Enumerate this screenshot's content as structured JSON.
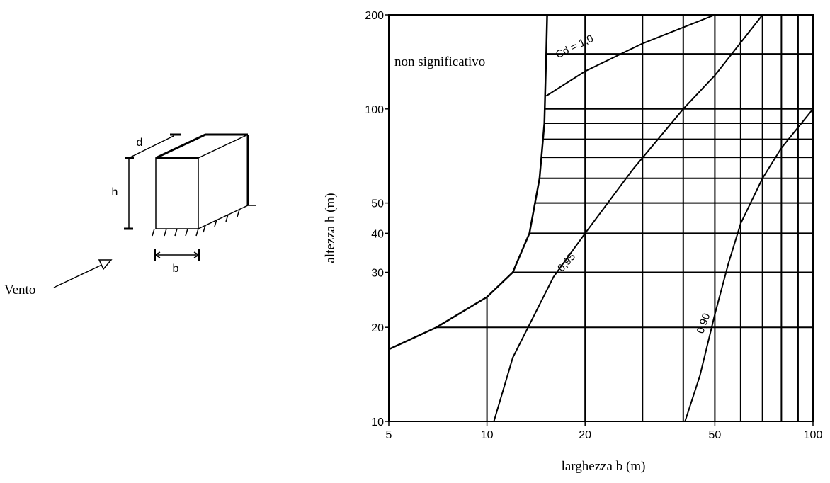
{
  "sketch": {
    "wind_label": "Vento",
    "dim_d": "d",
    "dim_h": "h",
    "dim_b": "b"
  },
  "chart_data": {
    "type": "line",
    "xlabel": "larghezza b (m)",
    "ylabel": "altezza h (m)",
    "xscale": "log",
    "yscale": "log",
    "xlim": [
      5,
      100
    ],
    "ylim": [
      10,
      200
    ],
    "xticks": [
      5,
      10,
      20,
      50,
      100
    ],
    "yticks": [
      10,
      20,
      30,
      40,
      50,
      100,
      200
    ],
    "grid": true,
    "annotations": [
      {
        "text": "non significativo"
      }
    ],
    "series": [
      {
        "name": "Cd = 1,0",
        "x": [
          15.2,
          20,
          30,
          50,
          73
        ],
        "y": [
          110,
          132,
          162,
          200,
          200
        ]
      },
      {
        "name": "0,95",
        "x": [
          10.5,
          12,
          14,
          16,
          20,
          28,
          40,
          50,
          70
        ],
        "y": [
          10,
          16,
          22,
          29,
          40,
          64,
          100,
          128,
          200
        ]
      },
      {
        "name": "0,90",
        "x": [
          40.5,
          45,
          50,
          55,
          60,
          70,
          80,
          100
        ],
        "y": [
          10,
          14,
          22,
          32,
          43,
          60,
          75,
          100
        ]
      }
    ],
    "boundary": {
      "name": "non significativo",
      "x": [
        5,
        7,
        10,
        12,
        13.5,
        14.5,
        15,
        15.2,
        15.3
      ],
      "y": [
        17,
        20,
        25,
        30,
        40,
        60,
        90,
        150,
        200
      ]
    }
  }
}
